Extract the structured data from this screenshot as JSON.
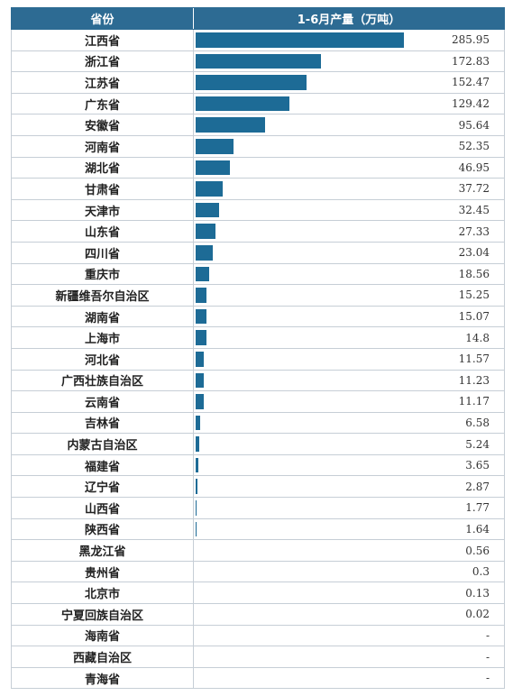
{
  "header": {
    "col_province": "省份",
    "col_output": "1-6月产量（万吨）"
  },
  "colors": {
    "header_bg": "#2d6b93",
    "bar": "#1d6b96",
    "grid": "#c6ced6"
  },
  "chart_data": {
    "type": "bar",
    "orientation": "horizontal",
    "title": "",
    "categories": [
      "江西省",
      "浙江省",
      "江苏省",
      "广东省",
      "安徽省",
      "河南省",
      "湖北省",
      "甘肃省",
      "天津市",
      "山东省",
      "四川省",
      "重庆市",
      "新疆维吾尔自治区",
      "湖南省",
      "上海市",
      "河北省",
      "广西壮族自治区",
      "云南省",
      "吉林省",
      "内蒙古自治区",
      "福建省",
      "辽宁省",
      "山西省",
      "陕西省",
      "黑龙江省",
      "贵州省",
      "北京市",
      "宁夏回族自治区",
      "海南省",
      "西藏自治区",
      "青海省"
    ],
    "values": [
      285.95,
      172.83,
      152.47,
      129.42,
      95.64,
      52.35,
      46.95,
      37.72,
      32.45,
      27.33,
      23.04,
      18.56,
      15.25,
      15.07,
      14.8,
      11.57,
      11.23,
      11.17,
      6.58,
      5.24,
      3.65,
      2.87,
      1.77,
      1.64,
      0.56,
      0.3,
      0.13,
      0.02,
      null,
      null,
      null
    ],
    "labels": [
      "285.95",
      "172.83",
      "152.47",
      "129.42",
      "95.64",
      "52.35",
      "46.95",
      "37.72",
      "32.45",
      "27.33",
      "23.04",
      "18.56",
      "15.25",
      "15.07",
      "14.8",
      "11.57",
      "11.23",
      "11.17",
      "6.58",
      "5.24",
      "3.65",
      "2.87",
      "1.77",
      "1.64",
      "0.56",
      "0.3",
      "0.13",
      "0.02",
      "-",
      "-",
      "-"
    ],
    "xlim": [
      0,
      315
    ]
  }
}
